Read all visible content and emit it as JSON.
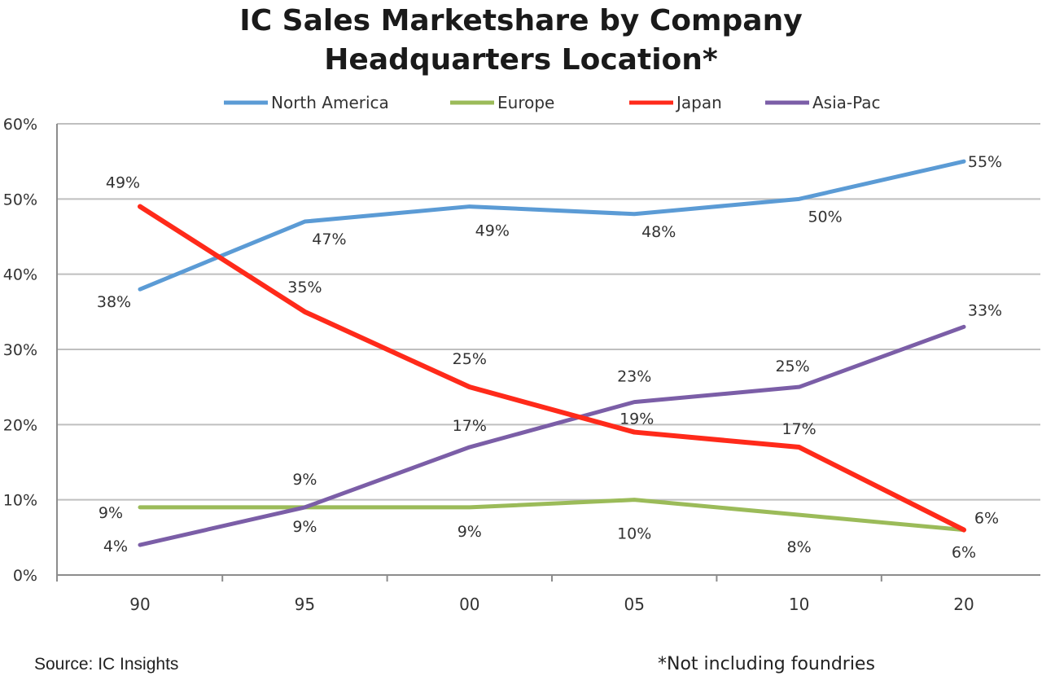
{
  "chart_data": {
    "type": "line",
    "title_lines": [
      "IC Sales Marketshare by Company",
      "Headquarters Location*"
    ],
    "categories": [
      "90",
      "95",
      "00",
      "05",
      "10",
      "20"
    ],
    "y_ticks": [
      "0%",
      "10%",
      "20%",
      "30%",
      "40%",
      "50%",
      "60%"
    ],
    "ylim": [
      0,
      60
    ],
    "grid": true,
    "legend_position": "top",
    "series": [
      {
        "name": "North America",
        "color": "#5b9bd5",
        "values": [
          38,
          47,
          49,
          48,
          50,
          55
        ],
        "labels": [
          "38%",
          "47%",
          "49%",
          "48%",
          "50%",
          "55%"
        ]
      },
      {
        "name": "Europe",
        "color": "#9bbb59",
        "values": [
          9,
          9,
          9,
          10,
          8,
          6
        ],
        "labels": [
          "9%",
          "9%",
          "9%",
          "10%",
          "8%",
          "6%"
        ]
      },
      {
        "name": "Japan",
        "color": "#ff2a1a",
        "values": [
          49,
          35,
          25,
          19,
          17,
          6
        ],
        "labels": [
          "49%",
          "35%",
          "25%",
          "19%",
          "17%",
          "6%"
        ]
      },
      {
        "name": "Asia-Pac",
        "color": "#7b5ea7",
        "values": [
          4,
          9,
          17,
          23,
          25,
          33
        ],
        "labels": [
          "4%",
          "9%",
          "17%",
          "23%",
          "25%",
          "33%"
        ]
      }
    ]
  },
  "footer": {
    "source": "Source:  IC Insights",
    "note": "*Not including foundries"
  }
}
